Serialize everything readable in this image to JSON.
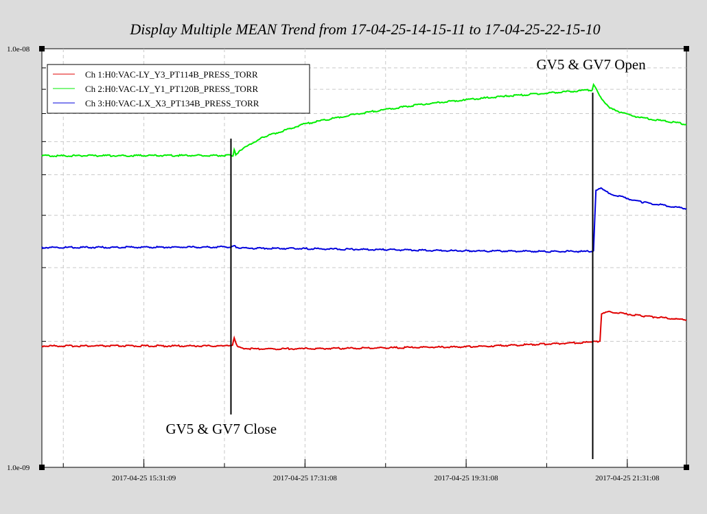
{
  "chart_data": {
    "type": "line",
    "title": "Display Multiple MEAN Trend from 17-04-25-14-15-11 to 17-04-25-22-15-10",
    "yscale": "log",
    "ylim": [
      1e-09,
      1e-08
    ],
    "ytick_labels": {
      "top": "1.0e-08",
      "bottom": "1.0e-09"
    },
    "xlim_hours": [
      14.2531,
      22.2528
    ],
    "xticks": [
      {
        "label": "2017-04-25 15:31:09",
        "hour": 15.5192
      },
      {
        "label": "2017-04-25 17:31:08",
        "hour": 17.5189
      },
      {
        "label": "2017-04-25 19:31:08",
        "hour": 19.5189
      },
      {
        "label": "2017-04-25 21:31:08",
        "hour": 21.5189
      }
    ],
    "grid": true,
    "legend_position": "top-left",
    "series": [
      {
        "name": "Ch 1:H0:VAC-LY_Y3_PT114B_PRESS_TORR",
        "color": "#e00000",
        "points": [
          [
            14.2531,
            1.95e-09
          ],
          [
            16.5,
            1.95e-09
          ],
          [
            16.62,
            1.95e-09
          ],
          [
            16.64,
            2.04e-09
          ],
          [
            16.68,
            1.94e-09
          ],
          [
            16.8,
            1.92e-09
          ],
          [
            17.5,
            1.92e-09
          ],
          [
            18.5,
            1.93e-09
          ],
          [
            19.5,
            1.94e-09
          ],
          [
            20.5,
            1.97e-09
          ],
          [
            21.05,
            1.99e-09
          ],
          [
            21.18,
            2e-09
          ],
          [
            21.2,
            2.33e-09
          ],
          [
            21.3,
            2.35e-09
          ],
          [
            21.7,
            2.3e-09
          ],
          [
            22.2528,
            2.25e-09
          ]
        ]
      },
      {
        "name": "Ch 2:H0:VAC-LY_Y1_PT120B_PRESS_TORR",
        "color": "#00ee00",
        "points": [
          [
            14.2531,
            5.55e-09
          ],
          [
            16.6,
            5.56e-09
          ],
          [
            16.625,
            5.56e-09
          ],
          [
            16.64,
            5.72e-09
          ],
          [
            16.66,
            5.6e-09
          ],
          [
            16.8,
            5.85e-09
          ],
          [
            17.0,
            6.15e-09
          ],
          [
            17.5,
            6.6e-09
          ],
          [
            18.0,
            6.9e-09
          ],
          [
            18.5,
            7.15e-09
          ],
          [
            19.0,
            7.38e-09
          ],
          [
            19.5,
            7.55e-09
          ],
          [
            20.0,
            7.7e-09
          ],
          [
            20.5,
            7.83e-09
          ],
          [
            21.0,
            7.95e-09
          ],
          [
            21.08,
            7.97e-09
          ],
          [
            21.1,
            8.2e-09
          ],
          [
            21.2,
            7.6e-09
          ],
          [
            21.3,
            7.2e-09
          ],
          [
            21.6,
            6.9e-09
          ],
          [
            21.9,
            6.75e-09
          ],
          [
            22.2528,
            6.6e-09
          ]
        ]
      },
      {
        "name": "Ch 3:H0:VAC-LX_X3_PT134B_PRESS_TORR",
        "color": "#0000dd",
        "points": [
          [
            14.2531,
            3.35e-09
          ],
          [
            16.6,
            3.36e-09
          ],
          [
            16.64,
            3.38e-09
          ],
          [
            16.7,
            3.34e-09
          ],
          [
            17.5,
            3.33e-09
          ],
          [
            18.5,
            3.31e-09
          ],
          [
            19.5,
            3.29e-09
          ],
          [
            20.5,
            3.28e-09
          ],
          [
            21.1,
            3.28e-09
          ],
          [
            21.13,
            4.6e-09
          ],
          [
            21.18,
            4.65e-09
          ],
          [
            21.3,
            4.5e-09
          ],
          [
            21.7,
            4.3e-09
          ],
          [
            22.2528,
            4.15e-09
          ]
        ]
      }
    ],
    "annotations": [
      {
        "text": "GV5 & GV7 Close",
        "hour": 16.6,
        "label_position": "below"
      },
      {
        "text": "GV5 & GV7 Open",
        "hour": 21.09,
        "label_position": "above"
      }
    ]
  }
}
